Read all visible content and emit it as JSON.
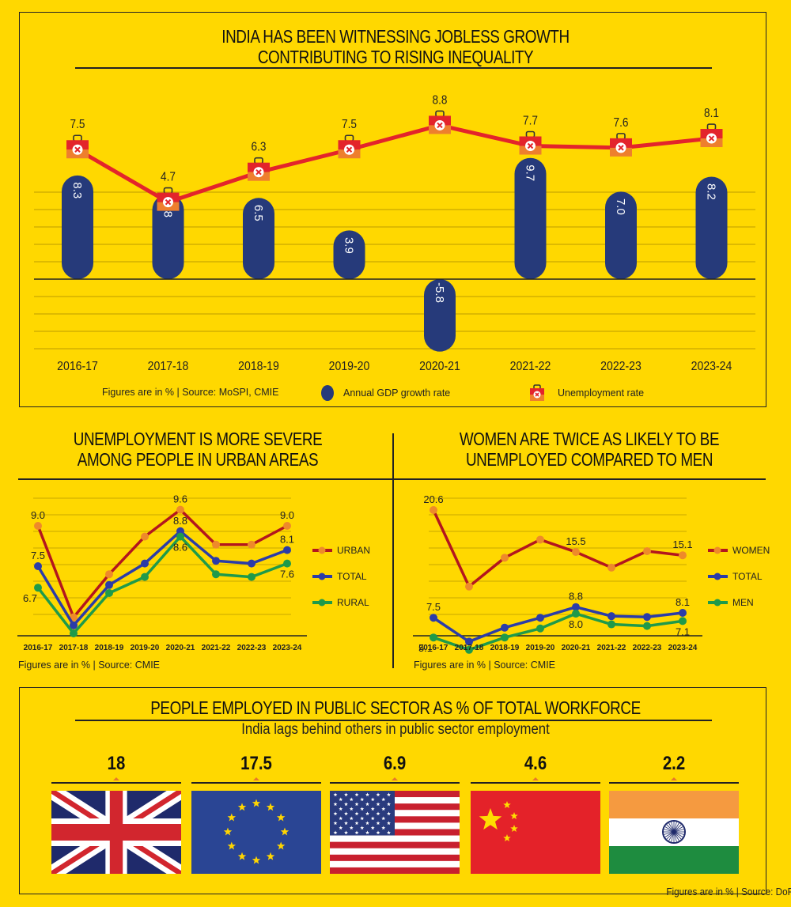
{
  "colors": {
    "background": "#FFD800",
    "gdp_bar": "#263A7A",
    "unemployment_line": "#E3242B",
    "briefcase_top": "#E3242B",
    "briefcase_bottom": "#EE7F2D",
    "urban": "#B3161E",
    "women": "#B3161E",
    "marker_orange": "#EE8A2A",
    "total": "#2B3CA8",
    "rural": "#1F9A4A",
    "men": "#1F9A4A",
    "gridline": "#C9A800"
  },
  "chart_data": [
    {
      "type": "bar",
      "id": "gdp-vs-unemployment",
      "title": "INDIA HAS BEEN WITNESSING JOBLESS GROWTH CONTRIBUTING TO RISING INEQUALITY",
      "title_lines": [
        "INDIA HAS BEEN WITNESSING JOBLESS GROWTH",
        "CONTRIBUTING TO RISING INEQUALITY"
      ],
      "categories": [
        "2016-17",
        "2017-18",
        "2018-19",
        "2019-20",
        "2020-21",
        "2021-22",
        "2022-23",
        "2023-24"
      ],
      "series": [
        {
          "name": "Annual GDP growth rate",
          "kind": "bar",
          "values": [
            8.3,
            6.8,
            6.5,
            3.9,
            -5.8,
            9.7,
            7.0,
            8.2
          ],
          "labels": [
            "8.3",
            "6.8",
            "6.5",
            "3.9",
            "-5.8",
            "9.7",
            "7.0",
            "8.2"
          ]
        },
        {
          "name": "Unemployment rate",
          "kind": "line",
          "values": [
            7.5,
            4.7,
            6.3,
            7.5,
            8.8,
            7.7,
            7.6,
            8.1
          ],
          "labels": [
            "7.5",
            "4.7",
            "6.3",
            "7.5",
            "8.8",
            "7.7",
            "7.6",
            "8.1"
          ]
        }
      ],
      "note": "Figures are in % | Source: MoSPI, CMIE",
      "legend": [
        "Annual GDP growth rate",
        "Unemployment rate"
      ],
      "legend_position": "bottom",
      "grid": true
    },
    {
      "type": "line",
      "id": "urban-rural",
      "title": "UNEMPLOYMENT IS MORE SEVERE AMONG PEOPLE IN URBAN AREAS",
      "title_lines": [
        "UNEMPLOYMENT IS MORE SEVERE",
        "AMONG PEOPLE IN URBAN AREAS"
      ],
      "categories": [
        "2016-17",
        "2017-18",
        "2018-19",
        "2019-20",
        "2020-21",
        "2021-22",
        "2022-23",
        "2023-24"
      ],
      "series": [
        {
          "name": "URBAN",
          "values": [
            9.0,
            5.6,
            7.2,
            8.6,
            9.6,
            8.3,
            8.3,
            9.0
          ],
          "labels": {
            "0": "9.0",
            "4": "9.6",
            "7": "9.0"
          }
        },
        {
          "name": "TOTAL",
          "values": [
            7.5,
            5.3,
            6.8,
            7.6,
            8.8,
            7.7,
            7.6,
            8.1
          ],
          "labels": {
            "0": "7.5",
            "4": "8.8",
            "7": "8.1"
          }
        },
        {
          "name": "RURAL",
          "values": [
            6.7,
            5.0,
            6.5,
            7.1,
            8.6,
            7.2,
            7.1,
            7.6
          ],
          "labels": {
            "0": "6.7",
            "4": "8.6",
            "7": "7.6"
          }
        }
      ],
      "note": "Figures are in % | Source: CMIE",
      "legend_position": "right",
      "grid": true
    },
    {
      "type": "line",
      "id": "women-men",
      "title": "WOMEN ARE TWICE AS LIKELY TO BE UNEMPLOYED COMPARED TO MEN",
      "title_lines": [
        "WOMEN ARE TWICE AS LIKELY TO BE",
        "UNEMPLOYED COMPARED TO MEN"
      ],
      "categories": [
        "2016-17",
        "2017-18",
        "2018-19",
        "2019-20",
        "2020-21",
        "2021-22",
        "2022-23",
        "2023-24"
      ],
      "series": [
        {
          "name": "WOMEN",
          "values": [
            20.6,
            11.3,
            14.8,
            17.0,
            15.5,
            13.6,
            15.6,
            15.1
          ],
          "labels": {
            "0": "20.6",
            "4": "15.5",
            "7": "15.1"
          }
        },
        {
          "name": "TOTAL",
          "values": [
            7.5,
            4.6,
            6.3,
            7.5,
            8.8,
            7.7,
            7.6,
            8.1
          ],
          "labels": {
            "0": "7.5",
            "4": "8.8",
            "7": "8.1"
          }
        },
        {
          "name": "MEN",
          "values": [
            5.1,
            3.6,
            5.1,
            6.2,
            8.0,
            6.7,
            6.5,
            7.1
          ],
          "labels": {
            "0": "5.1",
            "4": "8.0",
            "7": "7.1"
          }
        }
      ],
      "note": "Figures are in % | Source: CMIE",
      "legend_position": "right",
      "grid": true
    },
    {
      "type": "table",
      "id": "public-sector",
      "title": "PEOPLE EMPLOYED IN PUBLIC SECTOR AS % OF TOTAL WORKFORCE",
      "subtitle": "India lags behind others in public sector employment",
      "categories": [
        "UK",
        "EU",
        "USA",
        "China",
        "India"
      ],
      "values": [
        18,
        17.5,
        6.9,
        4.6,
        2.2
      ],
      "labels": [
        "18",
        "17.5",
        "6.9",
        "4.6",
        "2.2"
      ],
      "note": "Figures are in % | Source: DoPT"
    }
  ],
  "icons": {
    "gdp_marker": "navy-oval",
    "unemployment_marker": "briefcase-x-icon"
  }
}
